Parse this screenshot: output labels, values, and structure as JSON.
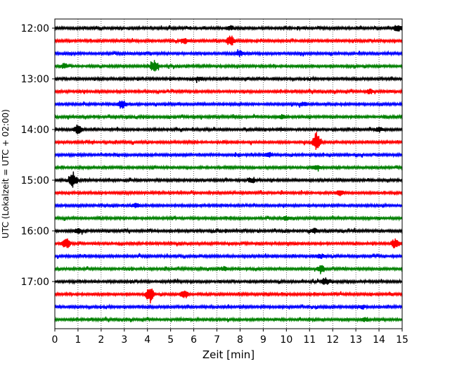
{
  "chart_data": {
    "type": "line",
    "subtype": "helicorder",
    "xlabel": "Zeit  [min]",
    "ylabel": "UTC (Lokalzeit = UTC + 02:00)",
    "xlim": [
      0,
      15
    ],
    "xticks": [
      0,
      1,
      2,
      3,
      4,
      5,
      6,
      7,
      8,
      9,
      10,
      11,
      12,
      13,
      14,
      15
    ],
    "ytick_labels": [
      "12:00",
      "13:00",
      "14:00",
      "15:00",
      "16:00",
      "17:00"
    ],
    "row_minutes": 15,
    "trace_colors": [
      "#000000",
      "#ff0000",
      "#0000ff",
      "#008000"
    ],
    "grid": "vertical dotted lines at each minute",
    "rows": [
      {
        "start": "12:00",
        "events": [
          [
            14.8,
            0.6
          ],
          [
            7.6,
            0.3
          ]
        ]
      },
      {
        "start": "12:15",
        "events": [
          [
            7.6,
            0.9
          ],
          [
            5.6,
            0.5
          ]
        ]
      },
      {
        "start": "12:30",
        "events": [
          [
            8.0,
            0.4
          ]
        ]
      },
      {
        "start": "12:45",
        "events": [
          [
            4.3,
            1.0
          ],
          [
            0.4,
            0.4
          ]
        ]
      },
      {
        "start": "13:00",
        "events": [
          [
            6.2,
            0.3
          ]
        ]
      },
      {
        "start": "13:15",
        "events": [
          [
            13.6,
            0.4
          ]
        ]
      },
      {
        "start": "13:30",
        "events": [
          [
            2.9,
            0.8
          ],
          [
            10.7,
            0.3
          ]
        ]
      },
      {
        "start": "13:45",
        "events": [
          [
            9.8,
            0.4
          ]
        ]
      },
      {
        "start": "14:00",
        "events": [
          [
            1.0,
            0.8
          ],
          [
            14.0,
            0.4
          ]
        ]
      },
      {
        "start": "14:15",
        "events": [
          [
            11.3,
            1.6
          ]
        ]
      },
      {
        "start": "14:30",
        "events": [
          [
            9.2,
            0.4
          ]
        ]
      },
      {
        "start": "14:45",
        "events": [
          [
            11.3,
            0.4
          ]
        ]
      },
      {
        "start": "15:00",
        "events": [
          [
            0.8,
            1.2
          ],
          [
            8.5,
            0.4
          ]
        ]
      },
      {
        "start": "15:15",
        "events": [
          [
            12.3,
            0.4
          ]
        ]
      },
      {
        "start": "15:30",
        "events": [
          [
            3.5,
            0.3
          ]
        ]
      },
      {
        "start": "15:45",
        "events": [
          [
            10.0,
            0.3
          ]
        ]
      },
      {
        "start": "16:00",
        "events": [
          [
            1.0,
            0.4
          ],
          [
            11.2,
            0.4
          ]
        ]
      },
      {
        "start": "16:15",
        "events": [
          [
            0.5,
            0.8
          ],
          [
            14.7,
            0.8
          ]
        ]
      },
      {
        "start": "16:30",
        "events": [
          [
            11.5,
            0.3
          ]
        ]
      },
      {
        "start": "16:45",
        "events": [
          [
            11.5,
            0.6
          ],
          [
            7.3,
            0.3
          ]
        ]
      },
      {
        "start": "17:00",
        "events": [
          [
            11.7,
            0.6
          ]
        ]
      },
      {
        "start": "17:15",
        "events": [
          [
            4.1,
            1.2
          ],
          [
            5.6,
            0.7
          ]
        ]
      },
      {
        "start": "17:30",
        "events": [
          [
            13.3,
            0.3
          ]
        ]
      },
      {
        "start": "17:45",
        "events": [
          [
            13.4,
            0.3
          ]
        ]
      }
    ]
  }
}
